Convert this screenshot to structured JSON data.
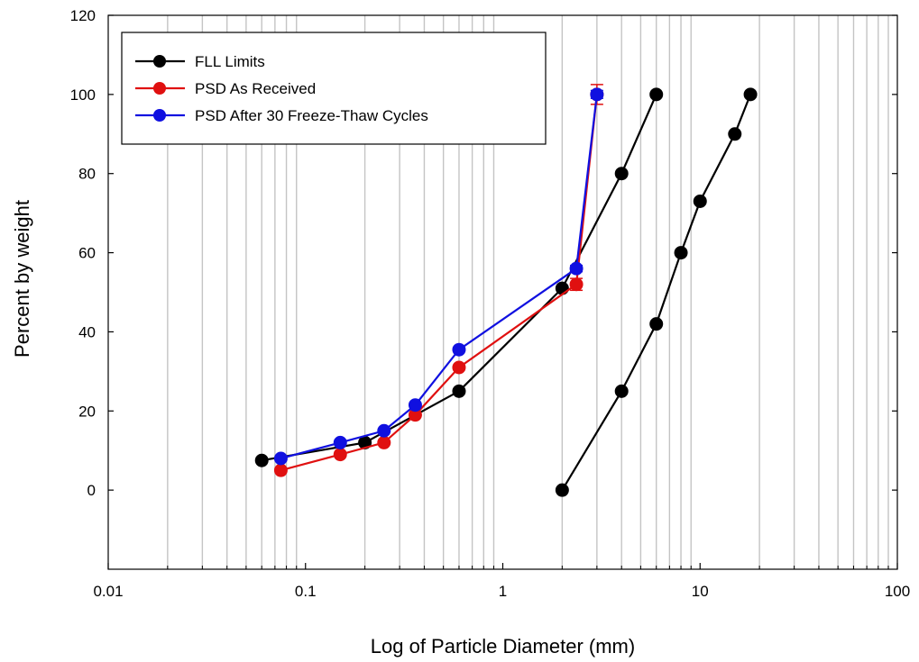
{
  "chart_data": {
    "type": "line",
    "title": "",
    "xlabel": "Log of Particle Diameter (mm)",
    "ylabel": "Percent by weight",
    "x_scale": "log",
    "xlim": [
      0.01,
      100
    ],
    "ylim": [
      -20,
      120
    ],
    "x_ticks": [
      0.01,
      0.1,
      1,
      10,
      100
    ],
    "x_tick_labels": [
      "0.01",
      "0.1",
      "1",
      "10",
      "100"
    ],
    "y_ticks": [
      0,
      20,
      40,
      60,
      80,
      100,
      120
    ],
    "y_tick_labels": [
      "0",
      "20",
      "40",
      "60",
      "80",
      "100",
      "120"
    ],
    "grid": "vertical minor gridlines on log x-axis",
    "legend_position": "top-left",
    "series": [
      {
        "name": "FLL Limits",
        "color": "#000000",
        "segments": [
          {
            "x": [
              0.06,
              0.2,
              0.6,
              2,
              4,
              6
            ],
            "y": [
              7.5,
              12,
              25,
              51,
              80,
              100
            ]
          },
          {
            "x": [
              2,
              4,
              6,
              8,
              10,
              15,
              18
            ],
            "y": [
              0,
              25,
              42,
              60,
              73,
              90,
              100
            ]
          }
        ]
      },
      {
        "name": "PSD As Received",
        "color": "#e01010",
        "x": [
          0.075,
          0.15,
          0.25,
          0.36,
          0.6,
          2.36,
          3
        ],
        "y": [
          5,
          9,
          12,
          19,
          31,
          52,
          100
        ],
        "error": [
          0,
          0,
          0,
          0,
          0,
          1.5,
          2.5
        ]
      },
      {
        "name": "PSD After 30 Freeze-Thaw Cycles",
        "color": "#1010e0",
        "x": [
          0.075,
          0.15,
          0.25,
          0.36,
          0.6,
          2.36,
          3
        ],
        "y": [
          8,
          12,
          15,
          21.5,
          35.5,
          56,
          100
        ],
        "error": [
          0,
          0,
          0,
          0,
          0,
          0.8,
          1
        ]
      }
    ]
  }
}
